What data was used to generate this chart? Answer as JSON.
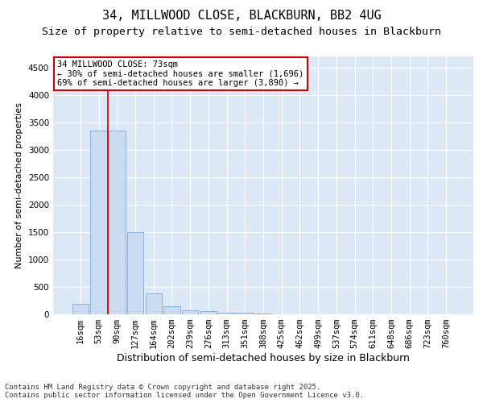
{
  "title1": "34, MILLWOOD CLOSE, BLACKBURN, BB2 4UG",
  "title2": "Size of property relative to semi-detached houses in Blackburn",
  "xlabel": "Distribution of semi-detached houses by size in Blackburn",
  "ylabel": "Number of semi-detached properties",
  "categories": [
    "16sqm",
    "53sqm",
    "90sqm",
    "127sqm",
    "164sqm",
    "202sqm",
    "239sqm",
    "276sqm",
    "313sqm",
    "351sqm",
    "388sqm",
    "425sqm",
    "462sqm",
    "499sqm",
    "537sqm",
    "574sqm",
    "611sqm",
    "648sqm",
    "686sqm",
    "723sqm",
    "760sqm"
  ],
  "values": [
    185,
    3350,
    3350,
    1500,
    380,
    145,
    80,
    55,
    35,
    25,
    10,
    3,
    1,
    0,
    0,
    0,
    0,
    0,
    0,
    0,
    0
  ],
  "bar_color": "#ccdcf0",
  "bar_edge_color": "#8ab0d8",
  "background_color": "#dce8f5",
  "grid_color": "#ffffff",
  "vline_color": "#cc0000",
  "vline_x": 1.5,
  "annotation_text": "34 MILLWOOD CLOSE: 73sqm\n← 30% of semi-detached houses are smaller (1,696)\n69% of semi-detached houses are larger (3,890) →",
  "annotation_box_facecolor": "#ffffff",
  "annotation_box_edgecolor": "#cc0000",
  "ylim": [
    0,
    4700
  ],
  "yticks": [
    0,
    500,
    1000,
    1500,
    2000,
    2500,
    3000,
    3500,
    4000,
    4500
  ],
  "footnote": "Contains HM Land Registry data © Crown copyright and database right 2025.\nContains public sector information licensed under the Open Government Licence v3.0.",
  "title1_fontsize": 11,
  "title2_fontsize": 9.5,
  "xlabel_fontsize": 9,
  "ylabel_fontsize": 8,
  "tick_fontsize": 7.5,
  "annot_fontsize": 7.5,
  "footnote_fontsize": 6.5
}
